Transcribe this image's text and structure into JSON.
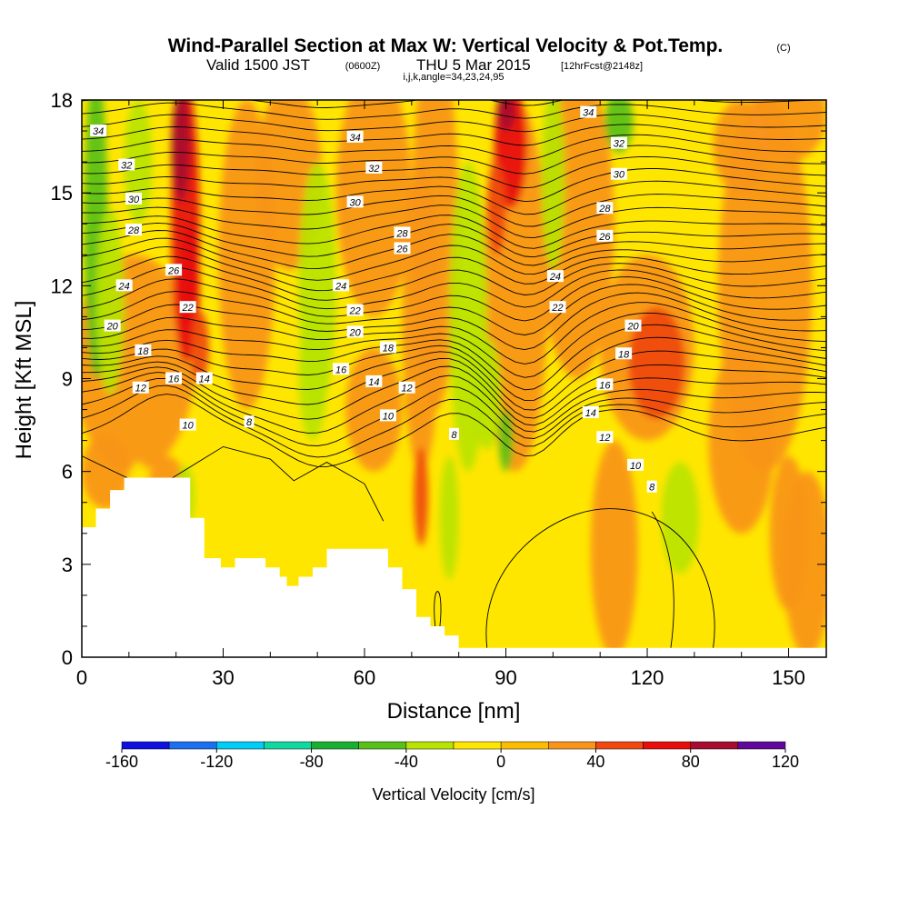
{
  "title": {
    "main": "Wind-Parallel Section at Max W: Vertical Velocity & Pot.Temp.",
    "unit": "(C)",
    "valid_prefix": "Valid 1500 JST",
    "valid_utc": "(0600Z)",
    "valid_date": "THU 5 Mar 2015",
    "forecast": "[12hrFcst@2148z]",
    "indices": "i,j,k,angle=34,23,24,95"
  },
  "chart_data": {
    "type": "contour",
    "xlabel": "Distance [nm]",
    "ylabel": "Height [Kft MSL]",
    "xlim": [
      0,
      158
    ],
    "ylim": [
      0,
      18
    ],
    "x_ticks": [
      0,
      30,
      60,
      90,
      120,
      150
    ],
    "y_ticks": [
      0,
      3,
      6,
      9,
      12,
      15,
      18
    ],
    "colorbar": {
      "title": "Vertical Velocity [cm/s]",
      "levels": [
        -160,
        -140,
        -120,
        -100,
        -80,
        -60,
        -40,
        -20,
        0,
        20,
        40,
        60,
        80,
        100,
        120
      ],
      "tick_labels": [
        "-160",
        "-120",
        "-80",
        "-40",
        "0",
        "40",
        "80",
        "120"
      ],
      "colors": [
        "#1010e0",
        "#1a70f0",
        "#00ccf8",
        "#10d8a0",
        "#18b030",
        "#58c018",
        "#b8e400",
        "#ffe600",
        "#fdbc00",
        "#f8941a",
        "#f04810",
        "#e80c0c",
        "#a80c30",
        "#60089a"
      ]
    },
    "theta_contour_labels": [
      {
        "x": 3.5,
        "y": 17.0,
        "text": "34"
      },
      {
        "x": 9.5,
        "y": 15.9,
        "text": "32"
      },
      {
        "x": 11,
        "y": 14.8,
        "text": "30"
      },
      {
        "x": 11,
        "y": 13.8,
        "text": "28"
      },
      {
        "x": 9,
        "y": 12.0,
        "text": "24"
      },
      {
        "x": 6.5,
        "y": 10.7,
        "text": "20"
      },
      {
        "x": 13,
        "y": 9.9,
        "text": "18"
      },
      {
        "x": 12.5,
        "y": 8.7,
        "text": "12"
      },
      {
        "x": 19.5,
        "y": 12.5,
        "text": "26"
      },
      {
        "x": 22.5,
        "y": 11.3,
        "text": "22"
      },
      {
        "x": 19.5,
        "y": 9.0,
        "text": "16"
      },
      {
        "x": 26,
        "y": 9.0,
        "text": "14"
      },
      {
        "x": 22.5,
        "y": 7.5,
        "text": "10"
      },
      {
        "x": 35.5,
        "y": 7.6,
        "text": "8"
      },
      {
        "x": 58,
        "y": 16.8,
        "text": "34"
      },
      {
        "x": 62,
        "y": 15.8,
        "text": "32"
      },
      {
        "x": 58,
        "y": 14.7,
        "text": "30"
      },
      {
        "x": 68,
        "y": 13.7,
        "text": "28"
      },
      {
        "x": 68,
        "y": 13.2,
        "text": "26"
      },
      {
        "x": 55,
        "y": 12.0,
        "text": "24"
      },
      {
        "x": 58,
        "y": 11.2,
        "text": "22"
      },
      {
        "x": 58,
        "y": 10.5,
        "text": "20"
      },
      {
        "x": 65,
        "y": 10.0,
        "text": "18"
      },
      {
        "x": 55,
        "y": 9.3,
        "text": "16"
      },
      {
        "x": 62,
        "y": 8.9,
        "text": "14"
      },
      {
        "x": 69,
        "y": 8.7,
        "text": "12"
      },
      {
        "x": 65,
        "y": 7.8,
        "text": "10"
      },
      {
        "x": 79,
        "y": 7.2,
        "text": "8"
      },
      {
        "x": 107.5,
        "y": 17.6,
        "text": "34"
      },
      {
        "x": 114,
        "y": 16.6,
        "text": "32"
      },
      {
        "x": 114,
        "y": 15.6,
        "text": "30"
      },
      {
        "x": 111,
        "y": 14.5,
        "text": "28"
      },
      {
        "x": 111,
        "y": 13.6,
        "text": "26"
      },
      {
        "x": 100.5,
        "y": 12.3,
        "text": "24"
      },
      {
        "x": 101,
        "y": 11.3,
        "text": "22"
      },
      {
        "x": 117,
        "y": 10.7,
        "text": "20"
      },
      {
        "x": 115,
        "y": 9.8,
        "text": "18"
      },
      {
        "x": 111,
        "y": 8.8,
        "text": "16"
      },
      {
        "x": 108,
        "y": 7.9,
        "text": "14"
      },
      {
        "x": 111,
        "y": 7.1,
        "text": "12"
      },
      {
        "x": 117.5,
        "y": 6.2,
        "text": "10"
      },
      {
        "x": 121,
        "y": 5.5,
        "text": "8"
      }
    ],
    "terrain_height_kft": [
      {
        "x": 0,
        "y": 4.2
      },
      {
        "x": 3,
        "y": 4.8
      },
      {
        "x": 6,
        "y": 5.4
      },
      {
        "x": 9,
        "y": 5.8
      },
      {
        "x": 23,
        "y": 4.5
      },
      {
        "x": 26,
        "y": 3.2
      },
      {
        "x": 29.5,
        "y": 2.9
      },
      {
        "x": 32.5,
        "y": 3.2
      },
      {
        "x": 39,
        "y": 2.9
      },
      {
        "x": 42,
        "y": 2.6
      },
      {
        "x": 43.5,
        "y": 2.3
      },
      {
        "x": 46,
        "y": 2.6
      },
      {
        "x": 49,
        "y": 2.9
      },
      {
        "x": 52,
        "y": 3.5
      },
      {
        "x": 65,
        "y": 2.9
      },
      {
        "x": 68,
        "y": 2.2
      },
      {
        "x": 71,
        "y": 1.3
      },
      {
        "x": 74,
        "y": 1.0
      },
      {
        "x": 77,
        "y": 0.7
      },
      {
        "x": 80,
        "y": 0.3
      },
      {
        "x": 158,
        "y": 0.3
      }
    ]
  }
}
